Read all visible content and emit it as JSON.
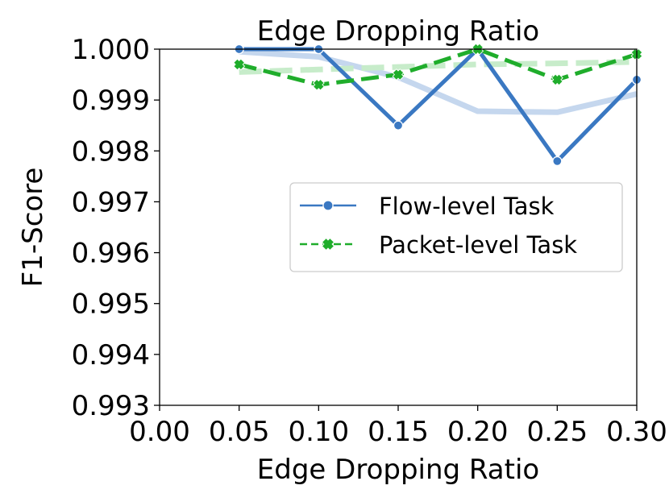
{
  "chart_data": {
    "type": "line",
    "title": "Edge Dropping Ratio",
    "xlabel": "Edge Dropping Ratio",
    "ylabel": "F1-Score",
    "xlim": [
      0.0,
      0.3
    ],
    "ylim": [
      0.993,
      1.0
    ],
    "xticks": [
      "0.00",
      "0.05",
      "0.10",
      "0.15",
      "0.20",
      "0.25",
      "0.30"
    ],
    "yticks": [
      "0.993",
      "0.994",
      "0.995",
      "0.996",
      "0.997",
      "0.998",
      "0.999",
      "1.000"
    ],
    "x": [
      0.05,
      0.1,
      0.15,
      0.2,
      0.25,
      0.3
    ],
    "series": [
      {
        "name": "Flow-level Task",
        "values": [
          1.0,
          1.0,
          0.9985,
          1.0,
          0.9978,
          0.9994
        ],
        "trend": [
          0.99995,
          0.99985,
          0.99945,
          0.99878,
          0.99876,
          0.99912
        ],
        "color": "#3a78c2",
        "trend_color": "#c5d7ee",
        "marker": "circle",
        "line_style": "solid"
      },
      {
        "name": "Packet-level Task",
        "values": [
          0.9997,
          0.9993,
          0.9995,
          1.0,
          0.9994,
          0.9999
        ],
        "trend": [
          0.99955,
          0.9996,
          0.99965,
          0.9997,
          0.99972,
          0.99975
        ],
        "color": "#1fad2b",
        "trend_color": "#c7ecca",
        "marker": "x",
        "line_style": "dashed"
      }
    ],
    "grid": false,
    "legend_position": "center-right"
  }
}
